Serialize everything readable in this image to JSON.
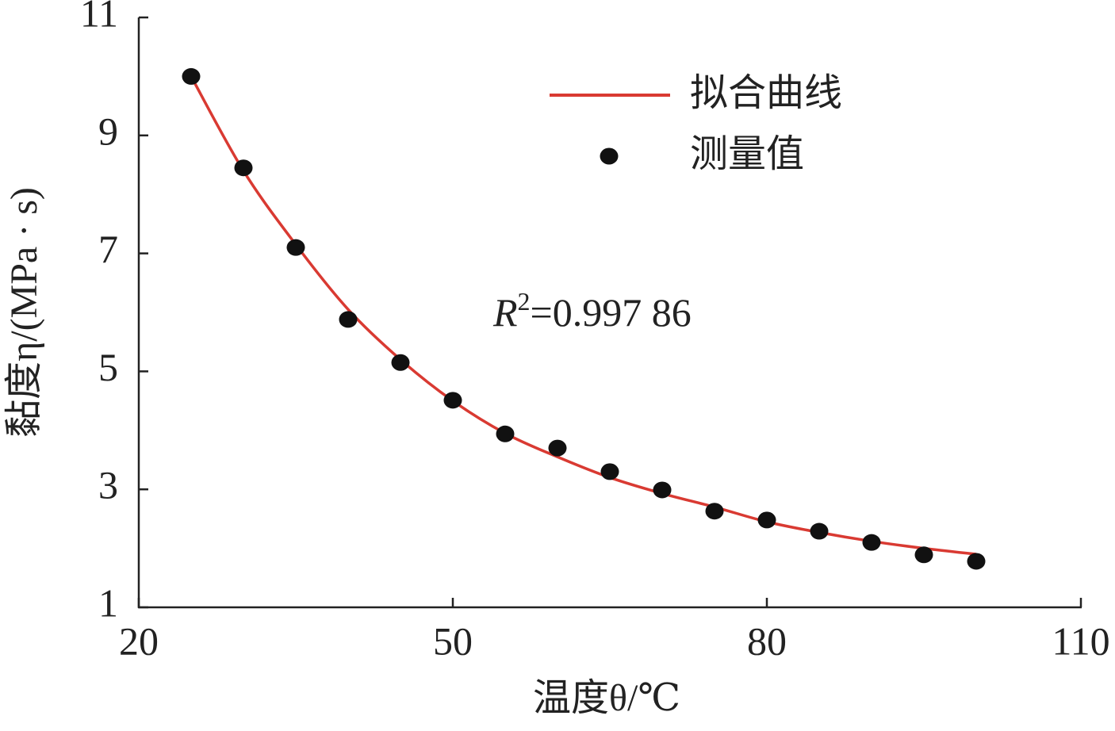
{
  "chart_data": {
    "type": "line",
    "x_label": "温度θ/℃",
    "y_label": "黏度η/(MPa · s)",
    "x": [
      25,
      30,
      35,
      40,
      45,
      50,
      55,
      60,
      65,
      70,
      75,
      80,
      85,
      90,
      95,
      100
    ],
    "series": [
      {
        "name": "拟合曲线",
        "color": "#d93a32",
        "mode": "line",
        "values": [
          10.0,
          8.4,
          7.15,
          6.05,
          5.2,
          4.5,
          3.95,
          3.55,
          3.2,
          2.93,
          2.7,
          2.45,
          2.27,
          2.12,
          2.0,
          1.9
        ]
      },
      {
        "name": "测量值",
        "color": "#111111",
        "mode": "markers",
        "values": [
          10.0,
          8.45,
          7.1,
          5.88,
          5.15,
          4.51,
          3.94,
          3.7,
          3.3,
          2.99,
          2.63,
          2.48,
          2.29,
          2.1,
          1.89,
          1.78
        ]
      }
    ],
    "annotation": {
      "symbol": "R",
      "exponent": "2",
      "text": "=0.997 86"
    },
    "xlim": [
      20,
      110
    ],
    "xticks": [
      20,
      50,
      80,
      110
    ],
    "ylim": [
      1,
      11
    ],
    "yticks": [
      1,
      3,
      5,
      7,
      9,
      11
    ],
    "grid": false,
    "legend": "upper right"
  }
}
